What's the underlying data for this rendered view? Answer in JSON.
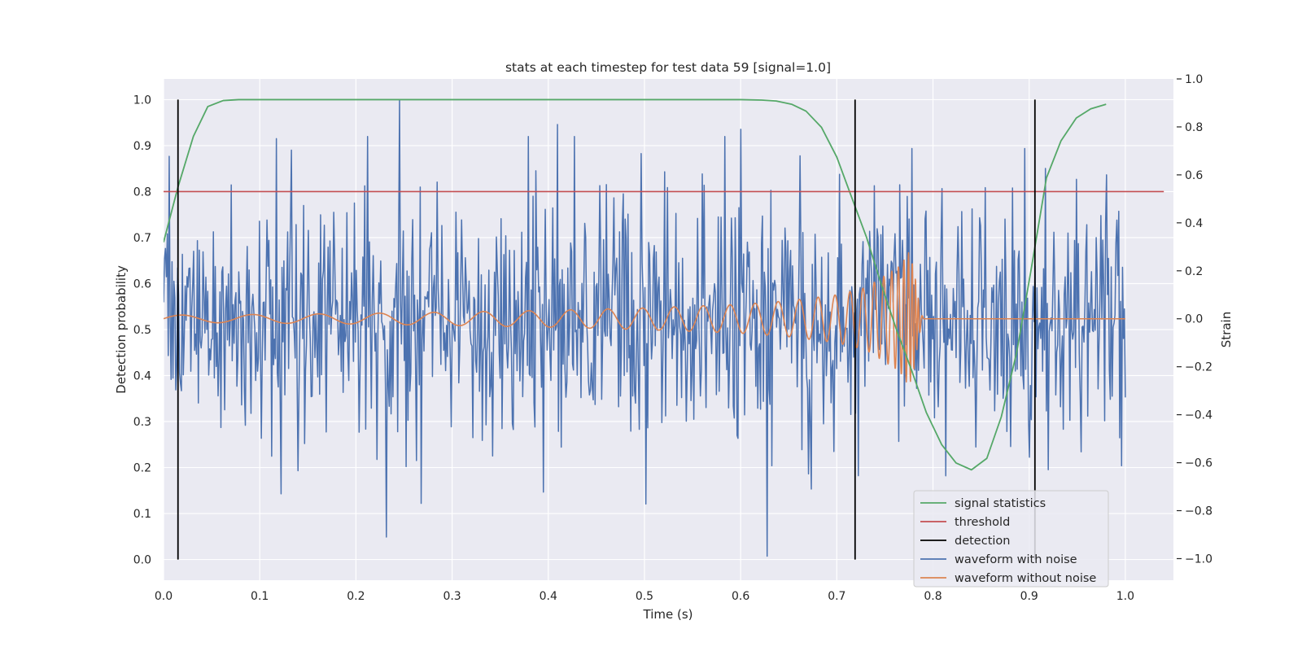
{
  "chart_data": {
    "type": "line",
    "title": "stats at each timestep for test data 59 [signal=1.0]",
    "xlabel": "Time (s)",
    "ylabel_left": "Detection probability",
    "ylabel_right": "Strain",
    "xlim": [
      0.0,
      1.05
    ],
    "ylim_left": [
      -0.045,
      1.045
    ],
    "ylim_right": [
      -1.09,
      1.0
    ],
    "x_ticks": [
      "0.0",
      "0.1",
      "0.2",
      "0.3",
      "0.4",
      "0.5",
      "0.6",
      "0.7",
      "0.8",
      "0.9",
      "1.0"
    ],
    "y_left_ticks": [
      "0.0",
      "0.1",
      "0.2",
      "0.3",
      "0.4",
      "0.5",
      "0.6",
      "0.7",
      "0.8",
      "0.9",
      "1.0"
    ],
    "y_right_ticks": [
      "−1.0",
      "−0.8",
      "−0.6",
      "−0.4",
      "−0.2",
      "0.0",
      "0.2",
      "0.4",
      "0.6",
      "0.8",
      "1.0"
    ],
    "grid": true,
    "legend_position": "lower-right",
    "colors": {
      "background": "#eaeaf2",
      "grid": "#ffffff",
      "signal_statistics": "#55a868",
      "threshold": "#c44e52",
      "detection": "#000000",
      "waveform_with_noise": "#4c72b0",
      "waveform_without_noise": "#dd8452"
    },
    "legend": [
      {
        "label": "signal statistics",
        "key": "signal_statistics"
      },
      {
        "label": "threshold",
        "key": "threshold"
      },
      {
        "label": "detection",
        "key": "detection"
      },
      {
        "label": "waveform with noise",
        "key": "waveform_with_noise"
      },
      {
        "label": "waveform without noise",
        "key": "waveform_without_noise"
      }
    ],
    "signal_statistics": {
      "axis": "left",
      "x": [
        0.0,
        0.015,
        0.031,
        0.046,
        0.062,
        0.078,
        0.093,
        0.2,
        0.4,
        0.6,
        0.622,
        0.637,
        0.653,
        0.668,
        0.684,
        0.7,
        0.715,
        0.731,
        0.746,
        0.762,
        0.778,
        0.793,
        0.809,
        0.824,
        0.84,
        0.856,
        0.871,
        0.887,
        0.902,
        0.918,
        0.933,
        0.949,
        0.964,
        0.98
      ],
      "y": [
        0.69,
        0.81,
        0.92,
        0.985,
        0.998,
        1.0,
        1.0,
        1.0,
        1.0,
        1.0,
        0.999,
        0.997,
        0.99,
        0.975,
        0.94,
        0.875,
        0.79,
        0.7,
        0.6,
        0.5,
        0.41,
        0.32,
        0.25,
        0.21,
        0.195,
        0.22,
        0.31,
        0.45,
        0.63,
        0.83,
        0.91,
        0.96,
        0.98,
        0.99
      ]
    },
    "threshold": {
      "axis": "left",
      "value": 0.8,
      "x_range": [
        0.0,
        1.04
      ]
    },
    "detections": {
      "axis": "left",
      "x": [
        0.015,
        0.719,
        0.906
      ],
      "y_range": [
        0.0,
        1.0
      ]
    },
    "waveform_with_noise": {
      "axis": "right",
      "x_range": [
        0.0,
        1.0
      ],
      "n_points": 1024,
      "std": 0.26,
      "extremes": [
        {
          "x": 0.245,
          "y": 0.91
        },
        {
          "x": 0.232,
          "y": -0.91
        },
        {
          "x": 0.628,
          "y": -0.99
        },
        {
          "x": 0.41,
          "y": 0.81
        },
        {
          "x": 0.6,
          "y": 0.79
        },
        {
          "x": 0.122,
          "y": -0.73
        },
        {
          "x": 0.268,
          "y": -0.77
        },
        {
          "x": 0.778,
          "y": 0.71
        },
        {
          "x": 0.895,
          "y": 0.71
        },
        {
          "x": 0.98,
          "y": 0.6
        }
      ]
    },
    "waveform_without_noise": {
      "axis": "right",
      "x": [
        0.0,
        0.1,
        0.2,
        0.3,
        0.4,
        0.5,
        0.6,
        0.65,
        0.7,
        0.73,
        0.75,
        0.765,
        0.775,
        0.78,
        0.785,
        0.79,
        1.0
      ],
      "amplitude": [
        0.015,
        0.018,
        0.022,
        0.028,
        0.035,
        0.045,
        0.06,
        0.075,
        0.1,
        0.13,
        0.18,
        0.22,
        0.28,
        0.22,
        0.08,
        0.0,
        0.0
      ],
      "frequency_hz": [
        13,
        14,
        16,
        19,
        23,
        29,
        38,
        45,
        60,
        80,
        110,
        160,
        230,
        300,
        350,
        0,
        0
      ]
    }
  }
}
